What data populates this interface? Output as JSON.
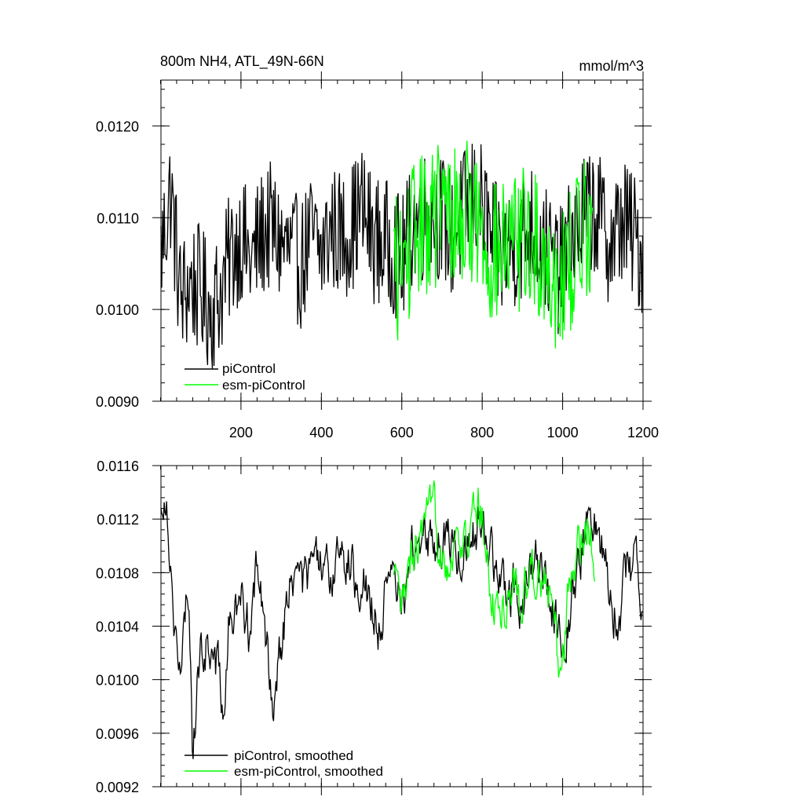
{
  "chart_data": [
    {
      "type": "line",
      "title": "800m NH4, ATL_49N-66N",
      "units": "mmol/m^3",
      "xlim": [
        1,
        1200
      ],
      "ylim": [
        0.009,
        0.0125
      ],
      "x_ticks": [
        200,
        400,
        600,
        800,
        1000,
        1200
      ],
      "y_ticks": [
        0.009,
        0.01,
        0.011,
        0.012
      ],
      "y_tick_labels": [
        "0.0090",
        "0.0100",
        "0.0110",
        "0.0120"
      ],
      "x_tick_labels": [
        "200",
        "400",
        "600",
        "800",
        "1000",
        "1200"
      ],
      "legend_position": "bottom-left",
      "series": [
        {
          "name": "piControl",
          "color": "#000000",
          "x": [
            1,
            25,
            50,
            75,
            100,
            125,
            150,
            175,
            200,
            225,
            250,
            275,
            300,
            325,
            350,
            375,
            400,
            425,
            450,
            475,
            500,
            525,
            550,
            575,
            600,
            625,
            650,
            675,
            700,
            725,
            750,
            775,
            800,
            825,
            850,
            875,
            900,
            925,
            950,
            975,
            1000,
            1025,
            1050,
            1075,
            1100,
            1125,
            1150,
            1175,
            1200
          ],
          "values": [
            0.0106,
            0.0113,
            0.0101,
            0.0103,
            0.0102,
            0.01,
            0.0102,
            0.0106,
            0.0108,
            0.0105,
            0.0108,
            0.0109,
            0.0107,
            0.0106,
            0.0105,
            0.0108,
            0.0106,
            0.0109,
            0.0108,
            0.0109,
            0.0111,
            0.0108,
            0.0107,
            0.0107,
            0.0105,
            0.0109,
            0.011,
            0.0111,
            0.011,
            0.0108,
            0.011,
            0.0112,
            0.0111,
            0.0107,
            0.0106,
            0.0107,
            0.0108,
            0.0109,
            0.0107,
            0.0105,
            0.0104,
            0.0108,
            0.011,
            0.0111,
            0.0109,
            0.0107,
            0.011,
            0.0108,
            0.0106
          ],
          "noise": 0.00045
        },
        {
          "name": "esm-piControl",
          "color": "#00ff00",
          "x": [
            580,
            600,
            625,
            650,
            675,
            700,
            725,
            750,
            775,
            800,
            825,
            850,
            875,
            900,
            925,
            950,
            975,
            1000,
            1025,
            1050,
            1075
          ],
          "values": [
            0.0105,
            0.0104,
            0.0108,
            0.0109,
            0.011,
            0.0111,
            0.011,
            0.011,
            0.0111,
            0.0108,
            0.0106,
            0.0106,
            0.0107,
            0.0108,
            0.0107,
            0.0106,
            0.0104,
            0.0103,
            0.0106,
            0.0109,
            0.011
          ],
          "noise": 0.0005
        }
      ]
    },
    {
      "type": "line",
      "xlim": [
        1,
        1200
      ],
      "ylim": [
        0.0092,
        0.0116
      ],
      "y_ticks": [
        0.0092,
        0.0096,
        0.01,
        0.0104,
        0.0108,
        0.0112,
        0.0116
      ],
      "y_tick_labels": [
        "0.0092",
        "0.0096",
        "0.0100",
        "0.0104",
        "0.0108",
        "0.0112",
        "0.0116"
      ],
      "legend_position": "bottom-left",
      "series": [
        {
          "name": "piControl, smoothed",
          "color": "#000000",
          "x": [
            1,
            10,
            20,
            30,
            40,
            50,
            60,
            70,
            80,
            100,
            120,
            140,
            150,
            160,
            170,
            175,
            180,
            200,
            220,
            240,
            250,
            260,
            270,
            280,
            290,
            300,
            320,
            340,
            360,
            380,
            400,
            420,
            440,
            450,
            460,
            480,
            500,
            520,
            540,
            560,
            580,
            600,
            620,
            640,
            660,
            680,
            700,
            720,
            740,
            760,
            780,
            800,
            820,
            840,
            860,
            880,
            900,
            920,
            940,
            960,
            980,
            1000,
            1020,
            1040,
            1060,
            1080,
            1100,
            1120,
            1140,
            1160,
            1180,
            1200
          ],
          "values": [
            0.0112,
            0.0115,
            0.0112,
            0.0106,
            0.0103,
            0.0099,
            0.0104,
            0.0107,
            0.0095,
            0.0102,
            0.0103,
            0.0101,
            0.0099,
            0.0098,
            0.0104,
            0.0105,
            0.0104,
            0.0106,
            0.0104,
            0.0108,
            0.0106,
            0.0103,
            0.0101,
            0.0099,
            0.0101,
            0.0103,
            0.0107,
            0.0108,
            0.0107,
            0.0109,
            0.0108,
            0.0107,
            0.011,
            0.0111,
            0.0109,
            0.0108,
            0.0108,
            0.0106,
            0.0104,
            0.0106,
            0.0107,
            0.0106,
            0.0109,
            0.011,
            0.0111,
            0.011,
            0.011,
            0.0111,
            0.0109,
            0.011,
            0.0111,
            0.0113,
            0.011,
            0.0107,
            0.0106,
            0.0107,
            0.0106,
            0.0108,
            0.0109,
            0.0107,
            0.0105,
            0.0103,
            0.0106,
            0.0109,
            0.0111,
            0.0112,
            0.011,
            0.0107,
            0.0104,
            0.0108,
            0.0109,
            0.0107
          ],
          "noise": 0.0002
        },
        {
          "name": "esm-piControl, smoothed",
          "color": "#00ff00",
          "x": [
            580,
            600,
            620,
            640,
            660,
            680,
            700,
            720,
            740,
            760,
            780,
            800,
            820,
            840,
            860,
            880,
            900,
            920,
            940,
            960,
            980,
            990,
            1000,
            1020,
            1040,
            1060,
            1080
          ],
          "values": [
            0.0107,
            0.0105,
            0.0108,
            0.011,
            0.0111,
            0.0112,
            0.011,
            0.0109,
            0.0111,
            0.011,
            0.0112,
            0.0113,
            0.0106,
            0.0105,
            0.0106,
            0.0107,
            0.0106,
            0.0108,
            0.0109,
            0.0107,
            0.0104,
            0.0101,
            0.0103,
            0.0107,
            0.011,
            0.0112,
            0.011
          ],
          "noise": 0.0002
        }
      ]
    }
  ]
}
